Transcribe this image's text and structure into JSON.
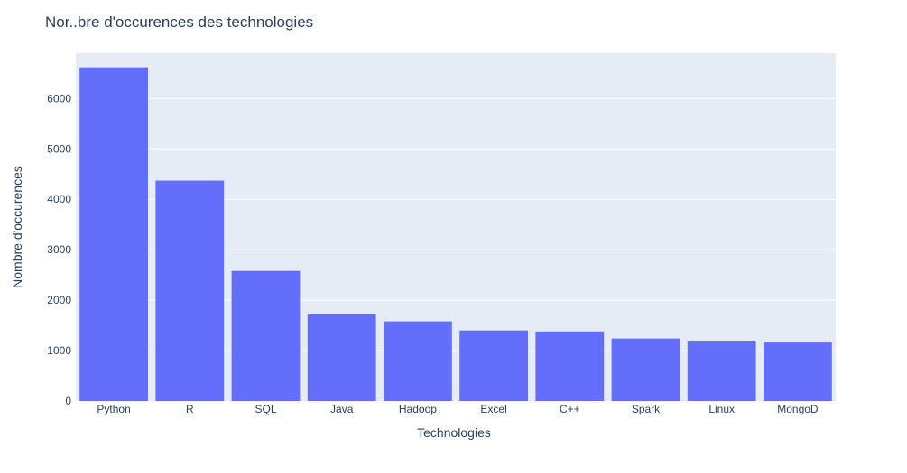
{
  "chart_data": {
    "type": "bar",
    "title": "Nor..bre d'occurences des technologies",
    "xlabel": "Technologies",
    "ylabel": "Nombre d'occurences",
    "categories": [
      "Python",
      "R",
      "SQL",
      "Java",
      "Hadoop",
      "Excel",
      "C++",
      "Spark",
      "Linux",
      "MongoD"
    ],
    "values": [
      6620,
      4370,
      2580,
      1720,
      1580,
      1400,
      1380,
      1240,
      1180,
      1160
    ],
    "ylim": [
      0,
      6900
    ],
    "yticks": [
      0,
      1000,
      2000,
      3000,
      4000,
      5000,
      6000
    ],
    "ytick_labels": [
      "0",
      "1000",
      "2000",
      "3000",
      "4000",
      "5000",
      "6000"
    ],
    "grid": true,
    "colors": {
      "bar": "#636efa",
      "plot_bg": "#e5ecf6",
      "grid": "#ffffff",
      "text": "#2a3f5f"
    }
  }
}
